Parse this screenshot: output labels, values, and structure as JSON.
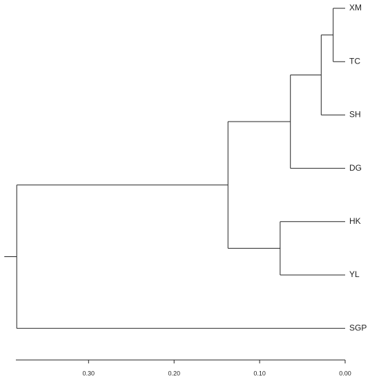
{
  "chart_data": {
    "type": "dendrogram",
    "xlim": [
      0.385,
      0
    ],
    "xticks": [
      {
        "value": 0.3,
        "label": "0.30"
      },
      {
        "value": 0.2,
        "label": "0.20"
      },
      {
        "value": 0.1,
        "label": "0.10"
      },
      {
        "value": 0,
        "label": "0.00"
      }
    ],
    "color": "#222222",
    "tree": {
      "height": 0.384,
      "children": [
        {
          "height": 0.137,
          "children": [
            {
              "height": 0.064,
              "children": [
                {
                  "height": 0.028,
                  "children": [
                    {
                      "height": 0.014,
                      "children": [
                        {
                          "label": "XM"
                        },
                        {
                          "label": "TC"
                        }
                      ]
                    },
                    {
                      "label": "SH"
                    }
                  ]
                },
                {
                  "label": "DG"
                }
              ]
            },
            {
              "height": 0.076,
              "children": [
                {
                  "label": "HK"
                },
                {
                  "label": "YL"
                }
              ]
            }
          ]
        },
        {
          "label": "SGP"
        }
      ]
    }
  }
}
